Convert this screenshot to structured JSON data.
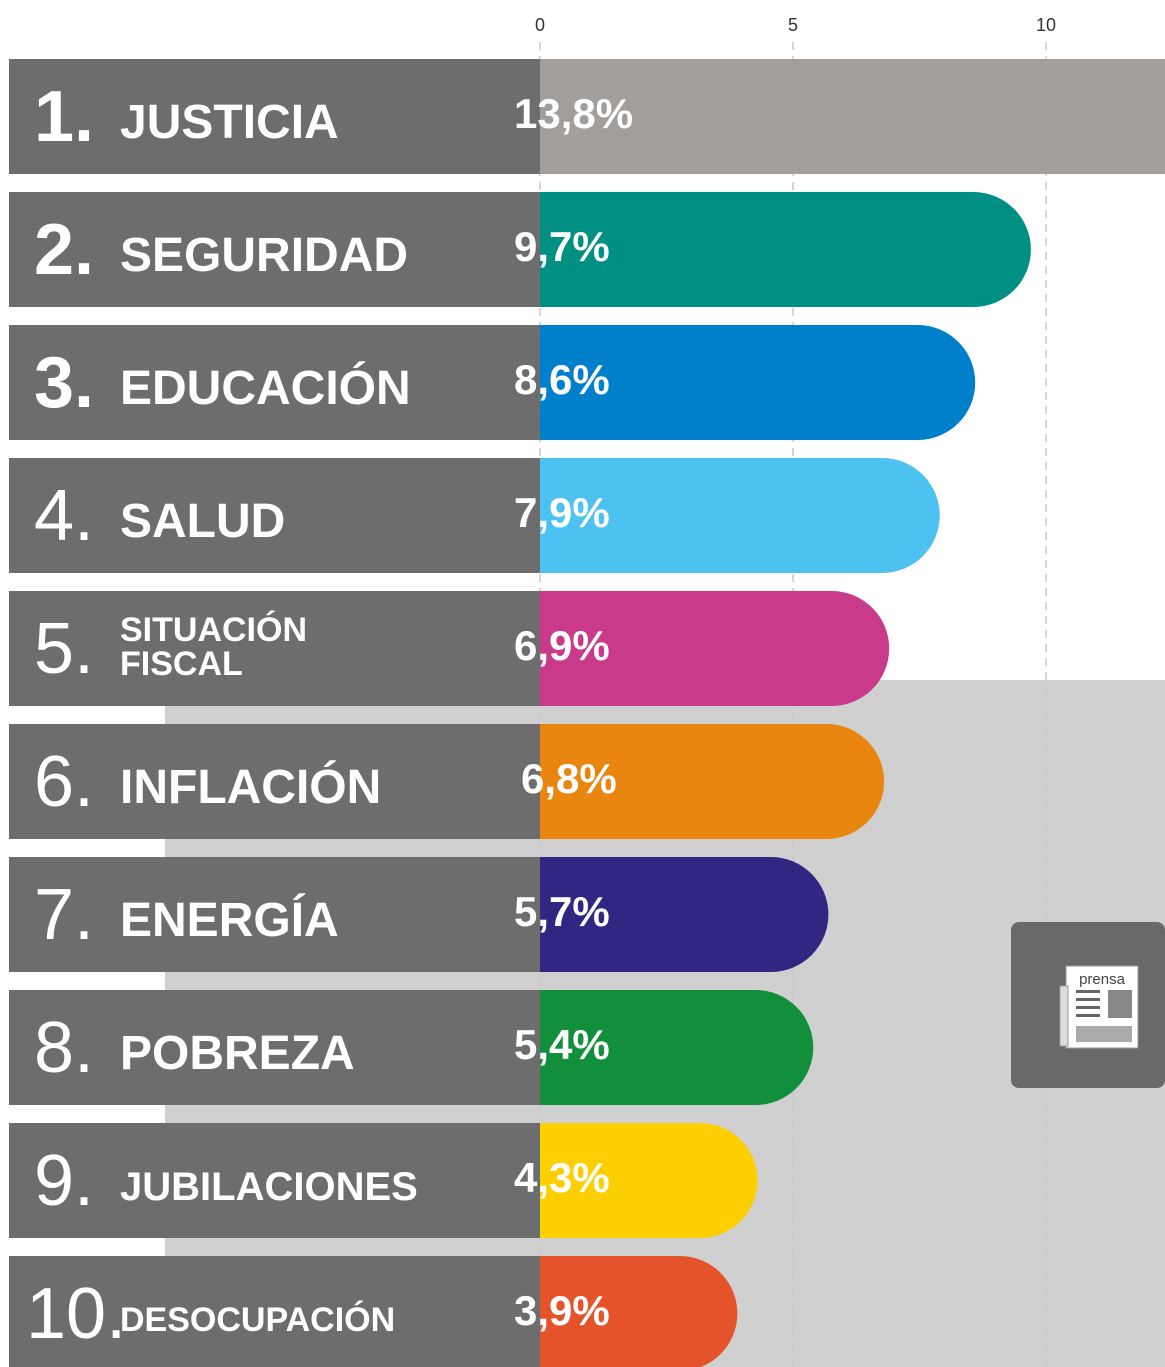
{
  "chart_data": {
    "type": "bar",
    "ranks": [
      "1.",
      "2.",
      "3.",
      "4.",
      "5.",
      "6.",
      "7.",
      "8.",
      "9.",
      "10."
    ],
    "categories": [
      "JUSTICIA",
      "SEGURIDAD",
      "EDUCACIÓN",
      "SALUD",
      "SITUACIÓN FISCAL",
      "INFLACIÓN",
      "ENERGÍA",
      "POBREZA",
      "JUBILACIONES",
      "DESOCUPACIÓN"
    ],
    "values": [
      13.8,
      9.7,
      8.6,
      7.9,
      6.9,
      6.8,
      5.7,
      5.4,
      4.3,
      3.9
    ],
    "value_labels": [
      "13,8%",
      "9,7%",
      "8,6%",
      "7,9%",
      "6,9%",
      "6,8%",
      "5,7%",
      "5,4%",
      "4,3%",
      "3,9%"
    ],
    "colors": [
      "#a19e9b",
      "#008f83",
      "#007fcb",
      "#4dc1ef",
      "#c93a8b",
      "#e8860f",
      "#312782",
      "#128f3a",
      "#fdcf00",
      "#e4532a"
    ],
    "xlim": [
      0,
      12.35
    ],
    "xticks": [
      0,
      5,
      10
    ],
    "grid": true,
    "logo": "prensa"
  }
}
